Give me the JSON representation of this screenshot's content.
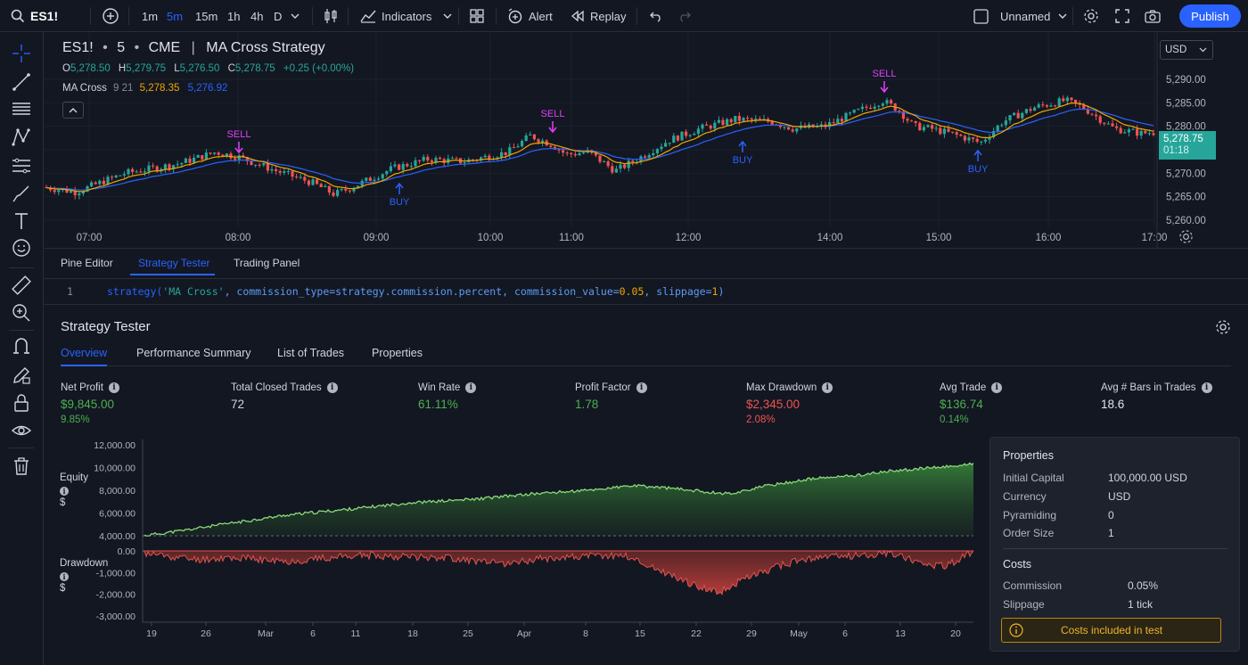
{
  "topbar": {
    "symbol": "ES1!",
    "timeframes": [
      "1m",
      "5m",
      "15m",
      "1h",
      "4h",
      "D"
    ],
    "active_timeframe": "5m",
    "indicators_label": "Indicators",
    "alert_label": "Alert",
    "replay_label": "Replay",
    "layout_name": "Unnamed",
    "publish_label": "Publish"
  },
  "chart": {
    "title_symbol": "ES1!",
    "title_interval": "5",
    "title_exchange": "CME",
    "title_strategy": "MA Cross Strategy",
    "ohlc": {
      "o_label": "O",
      "o": "5,278.50",
      "h_label": "H",
      "h": "5,279.75",
      "l_label": "L",
      "l": "5,276.50",
      "c_label": "C",
      "c": "5,278.75",
      "change": "+0.25 (+0.00%)"
    },
    "indicator": {
      "name": "MA Cross",
      "params": "9 21",
      "fast_value": "5,278.35",
      "slow_value": "5,276.92"
    },
    "currency": "USD",
    "price_ticks": [
      "5,290.00",
      "5,285.00",
      "5,280.00",
      "5,275.00",
      "5,270.00",
      "5,265.00",
      "5,260.00"
    ],
    "last_price": "5,278.75",
    "countdown": "01:18",
    "time_ticks": [
      "07:00",
      "08:00",
      "09:00",
      "10:00",
      "11:00",
      "12:00",
      "14:00",
      "15:00",
      "16:00",
      "17:00"
    ],
    "signals": [
      {
        "label": "SELL",
        "type": "sell"
      },
      {
        "label": "BUY",
        "type": "buy"
      },
      {
        "label": "SELL",
        "type": "sell"
      },
      {
        "label": "BUY",
        "type": "buy"
      },
      {
        "label": "SELL",
        "type": "sell"
      },
      {
        "label": "BUY",
        "type": "buy"
      }
    ],
    "colors": {
      "up": "#26a69a",
      "down": "#ef5350",
      "fast_ma": "#f0a500",
      "slow_ma": "#2962ff",
      "sell": "#e040fb",
      "buy": "#2962ff"
    }
  },
  "bottom_tabs": [
    "Pine Editor",
    "Strategy Tester",
    "Trading Panel"
  ],
  "active_bottom_tab": "Strategy Tester",
  "code": {
    "line_number": "1",
    "fn": "strategy(",
    "str": "'MA Cross'",
    "rest1": ", commission_type=strategy.commission.percent, commission_value=",
    "num1": "0.05",
    "rest2": ", slippage=",
    "num2": "1",
    "close": ")"
  },
  "strategy_tester": {
    "title": "Strategy Tester",
    "tabs": [
      "Overview",
      "Performance Summary",
      "List of Trades",
      "Properties"
    ],
    "active_tab": "Overview",
    "metrics": [
      {
        "label": "Net Profit",
        "value": "$9,845.00",
        "sub": "9.85%",
        "color": "#4caf50"
      },
      {
        "label": "Total Closed Trades",
        "value": "72",
        "sub": "",
        "color": "#d1d4dc"
      },
      {
        "label": "Win Rate",
        "value": "61.11%",
        "sub": "",
        "color": "#4caf50"
      },
      {
        "label": "Profit Factor",
        "value": "1.78",
        "sub": "",
        "color": "#4caf50"
      },
      {
        "label": "Max Drawdown",
        "value": "$2,345.00",
        "sub": "2.08%",
        "color": "#ef5350"
      },
      {
        "label": "Avg Trade",
        "value": "$136.74",
        "sub": "0.14%",
        "color": "#4caf50"
      },
      {
        "label": "Avg # Bars in Trades",
        "value": "18.6",
        "sub": "",
        "color": "#d1d4dc"
      }
    ],
    "equity_label": "Equity",
    "equity_unit": "$",
    "drawdown_label": "Drawdown",
    "drawdown_unit": "$",
    "equity_ticks": [
      "12,000.00",
      "10,000.00",
      "8,000.00",
      "6,000.00",
      "4,000.00"
    ],
    "drawdown_ticks": [
      "0.00",
      "-1,000.00",
      "-2,000.00",
      "-3,000.00"
    ],
    "date_ticks": [
      "19",
      "26",
      "Mar",
      "6",
      "11",
      "18",
      "25",
      "Apr",
      "8",
      "15",
      "22",
      "29",
      "May",
      "6",
      "13",
      "20"
    ],
    "properties": {
      "title": "Properties",
      "rows": [
        {
          "label": "Initial Capital",
          "value": "100,000.00 USD"
        },
        {
          "label": "Currency",
          "value": "USD"
        },
        {
          "label": "Pyramiding",
          "value": "0"
        },
        {
          "label": "Order Size",
          "value": "1"
        }
      ],
      "costs_title": "Costs",
      "costs": [
        {
          "label": "Commission",
          "value": "0.05%"
        },
        {
          "label": "Slippage",
          "value": "1 tick"
        }
      ],
      "notice": "Costs included in test"
    }
  }
}
